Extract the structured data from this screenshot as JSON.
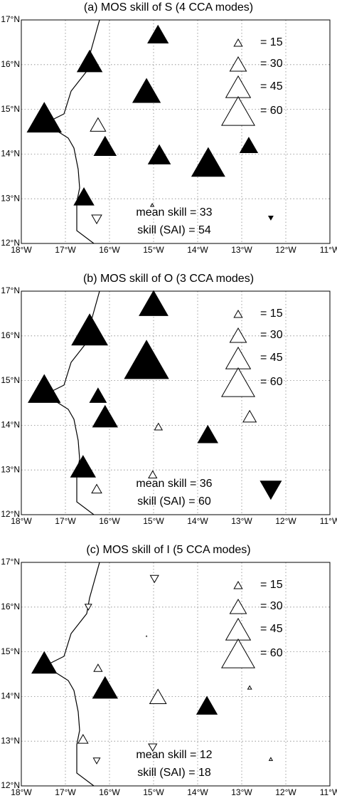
{
  "chart_data": [
    {
      "type": "scatter",
      "title": "(a) MOS skill of S (4 CCA modes)",
      "x": [
        -14.9,
        -16.45,
        -15.16,
        -17.48,
        -16.26,
        -16.1,
        -14.87,
        -13.76,
        -12.84,
        -16.58,
        -15.03,
        -16.29,
        -12.34
      ],
      "y": [
        16.68,
        16.08,
        15.42,
        14.82,
        14.66,
        14.18,
        13.99,
        13.82,
        14.2,
        13.05,
        12.86,
        12.54,
        12.57
      ],
      "size": [
        37,
        45,
        50,
        62,
        28,
        40,
        40,
        60,
        32,
        36,
        6,
        -18,
        -8
      ],
      "filled": [
        true,
        true,
        true,
        true,
        false,
        true,
        true,
        true,
        true,
        true,
        false,
        false,
        true
      ],
      "color": "#000000",
      "legend": [
        {
          "value": 15,
          "label": "= 15"
        },
        {
          "value": 30,
          "label": "= 30"
        },
        {
          "value": 45,
          "label": "= 45"
        },
        {
          "value": 60,
          "label": "= 60"
        }
      ],
      "annotations": [
        "mean skill = 33",
        "skill (SAI) = 54"
      ],
      "xlim": [
        -18,
        -11
      ],
      "ylim": [
        12,
        17
      ],
      "xticks": [
        {
          "value": -18,
          "label": "18°W"
        },
        {
          "value": -17,
          "label": "17°W"
        },
        {
          "value": -16,
          "label": "16°W"
        },
        {
          "value": -15,
          "label": "15°W"
        },
        {
          "value": -14,
          "label": "14°W"
        },
        {
          "value": -13,
          "label": "13°W"
        },
        {
          "value": -12,
          "label": "12°W"
        },
        {
          "value": -11,
          "label": "11°W"
        }
      ],
      "yticks": [
        {
          "value": 12,
          "label": "12°N"
        },
        {
          "value": 13,
          "label": "13°N"
        },
        {
          "value": 14,
          "label": "14°N"
        },
        {
          "value": 15,
          "label": "15°N"
        },
        {
          "value": 16,
          "label": "16°N"
        },
        {
          "value": 17,
          "label": "17°N"
        }
      ],
      "grid": true
    },
    {
      "type": "scatter",
      "title": "(b) MOS skill of O (3 CCA modes)",
      "x": [
        -15.0,
        -16.45,
        -15.16,
        -17.48,
        -16.26,
        -16.1,
        -14.89,
        -13.77,
        -12.82,
        -16.6,
        -15.02,
        -16.29,
        -12.34
      ],
      "y": [
        16.73,
        16.14,
        15.47,
        14.82,
        14.67,
        14.2,
        13.97,
        13.8,
        14.2,
        13.08,
        12.9,
        12.58,
        12.55
      ],
      "size": [
        52,
        65,
        80,
        58,
        30,
        45,
        14,
        36,
        24,
        45,
        15,
        18,
        -38
      ],
      "filled": [
        true,
        true,
        true,
        true,
        true,
        true,
        false,
        true,
        false,
        true,
        false,
        false,
        true
      ],
      "color": "#000000",
      "legend": [
        {
          "value": 15,
          "label": "= 15"
        },
        {
          "value": 30,
          "label": "= 30"
        },
        {
          "value": 45,
          "label": "= 45"
        },
        {
          "value": 60,
          "label": "= 60"
        }
      ],
      "annotations": [
        "mean skill = 36",
        "skill (SAI) = 60"
      ],
      "xlim": [
        -18,
        -11
      ],
      "ylim": [
        12,
        17
      ],
      "xticks": [
        {
          "value": -18,
          "label": "18°W"
        },
        {
          "value": -17,
          "label": "17°W"
        },
        {
          "value": -16,
          "label": "16°W"
        },
        {
          "value": -15,
          "label": "15°W"
        },
        {
          "value": -14,
          "label": "14°W"
        },
        {
          "value": -13,
          "label": "13°W"
        },
        {
          "value": -12,
          "label": "12°W"
        },
        {
          "value": -11,
          "label": "11°W"
        }
      ],
      "yticks": [
        {
          "value": 12,
          "label": "12°N"
        },
        {
          "value": 13,
          "label": "13°N"
        },
        {
          "value": 14,
          "label": "14°N"
        },
        {
          "value": 15,
          "label": "15°N"
        },
        {
          "value": 16,
          "label": "16°N"
        },
        {
          "value": 17,
          "label": "17°N"
        }
      ],
      "grid": true
    },
    {
      "type": "scatter",
      "title": "(c) MOS skill of I (5 CCA modes)",
      "x": [
        -14.98,
        -16.48,
        -15.16,
        -17.48,
        -16.26,
        -16.1,
        -14.9,
        -13.79,
        -12.82,
        -16.6,
        -15.02,
        -16.29,
        -12.34
      ],
      "y": [
        16.63,
        16.0,
        15.35,
        14.76,
        14.64,
        14.2,
        14.0,
        13.8,
        14.2,
        13.05,
        12.86,
        12.56,
        12.6
      ],
      "size": [
        -15,
        -12,
        1,
        45,
        15,
        45,
        30,
        37,
        7,
        18,
        -15,
        -12,
        6
      ],
      "filled": [
        false,
        false,
        true,
        true,
        false,
        true,
        false,
        true,
        false,
        false,
        false,
        false,
        false
      ],
      "color": "#000000",
      "legend": [
        {
          "value": 15,
          "label": "= 15"
        },
        {
          "value": 30,
          "label": "= 30"
        },
        {
          "value": 45,
          "label": "= 45"
        },
        {
          "value": 60,
          "label": "= 60"
        }
      ],
      "annotations": [
        "mean skill = 12",
        "skill (SAI) = 18"
      ],
      "xlim": [
        -18,
        -11
      ],
      "ylim": [
        12,
        17
      ],
      "xticks": [
        {
          "value": -18,
          "label": "18°W"
        },
        {
          "value": -17,
          "label": "17°W"
        },
        {
          "value": -16,
          "label": "16°W"
        },
        {
          "value": -15,
          "label": "15°W"
        },
        {
          "value": -14,
          "label": "14°W"
        },
        {
          "value": -13,
          "label": "13°W"
        },
        {
          "value": -12,
          "label": "12°W"
        },
        {
          "value": -11,
          "label": "11°W"
        }
      ],
      "yticks": [
        {
          "value": 12,
          "label": "12°N"
        },
        {
          "value": 13,
          "label": "13°N"
        },
        {
          "value": 14,
          "label": "14°N"
        },
        {
          "value": 15,
          "label": "15°N"
        },
        {
          "value": 16,
          "label": "16°N"
        },
        {
          "value": 17,
          "label": "17°N"
        }
      ],
      "grid": true
    }
  ]
}
